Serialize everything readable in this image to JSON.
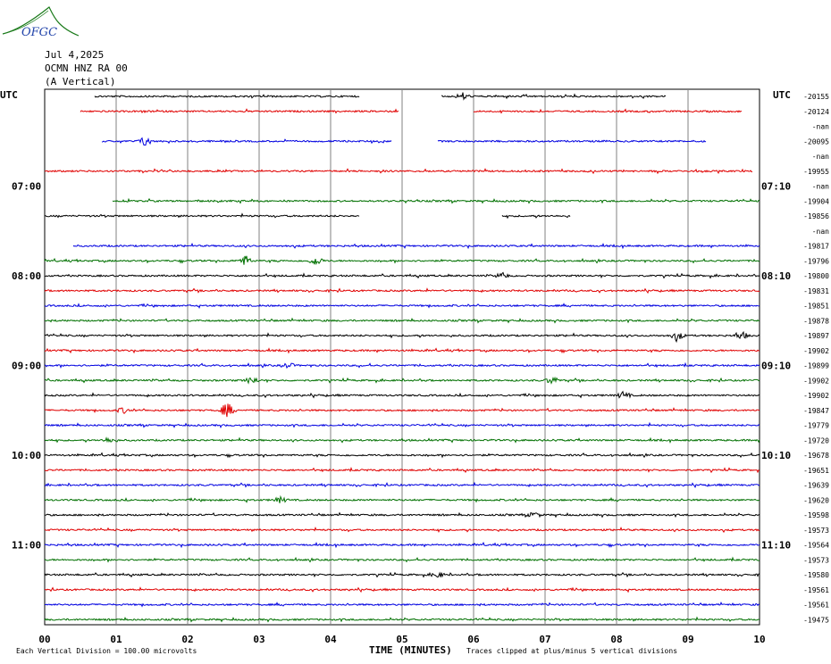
{
  "header": {
    "logo_text": "OFGC",
    "date": "Jul 4,2025",
    "station": "OCMN HNZ RA 00",
    "component": "(A Vertical)"
  },
  "left_label": "UTC",
  "right_label": "UTC",
  "colors": {
    "black": "#000000",
    "red": "#e00000",
    "blue": "#0000e0",
    "green": "#007000",
    "grid": "#808080",
    "logo": "#1a7a1a",
    "logo_text": "#2244aa"
  },
  "footer": {
    "division_note": "Each Vertical Division =  100.00 microvolts",
    "axis_title": "TIME (MINUTES)",
    "clip_note": "Traces clipped at plus/minus 5 vertical divisions"
  },
  "chart_data": {
    "type": "line",
    "title": "",
    "xlabel": "TIME (MINUTES)",
    "ylabel": "",
    "x_ticks": [
      "00",
      "01",
      "02",
      "03",
      "04",
      "05",
      "06",
      "07",
      "08",
      "09",
      "10"
    ],
    "xlim": [
      0,
      10
    ],
    "grid": true,
    "left_time_labels": [
      {
        "row": 6,
        "label": "07:00"
      },
      {
        "row": 12,
        "label": "08:00"
      },
      {
        "row": 18,
        "label": "09:00"
      },
      {
        "row": 24,
        "label": "10:00"
      },
      {
        "row": 30,
        "label": "11:00"
      }
    ],
    "right_time_labels": [
      {
        "row": 6,
        "label": "07:10"
      },
      {
        "row": 12,
        "label": "08:10"
      },
      {
        "row": 18,
        "label": "09:10"
      },
      {
        "row": 24,
        "label": "10:10"
      },
      {
        "row": 30,
        "label": "11:10"
      }
    ],
    "series": [
      {
        "color": "black",
        "offset": "-20155",
        "segments": [
          [
            0.7,
            4.4
          ],
          [
            5.55,
            8.7
          ]
        ],
        "events": [
          {
            "t": 5.85,
            "amp": 4
          }
        ]
      },
      {
        "color": "red",
        "offset": "-20124",
        "segments": [
          [
            0.5,
            4.95
          ],
          [
            6.0,
            9.75
          ]
        ],
        "events": []
      },
      {
        "color": "green",
        "offset": "-nan",
        "segments": [],
        "events": []
      },
      {
        "color": "blue",
        "offset": "-20095",
        "segments": [
          [
            0.8,
            4.85
          ],
          [
            5.5,
            9.25
          ]
        ],
        "events": [
          {
            "t": 1.4,
            "amp": 5
          }
        ]
      },
      {
        "color": "black",
        "offset": "-nan",
        "segments": [],
        "events": []
      },
      {
        "color": "red",
        "offset": "-19955",
        "segments": [
          [
            0.0,
            9.9
          ]
        ],
        "events": []
      },
      {
        "color": "blue",
        "offset": "-nan",
        "segments": [],
        "events": []
      },
      {
        "color": "green",
        "offset": "-19904",
        "segments": [
          [
            0.95,
            10.0
          ]
        ],
        "events": []
      },
      {
        "color": "black",
        "offset": "-19856",
        "segments": [
          [
            0.0,
            4.4
          ],
          [
            6.4,
            7.35
          ]
        ],
        "events": []
      },
      {
        "color": "red",
        "offset": "-nan",
        "segments": [],
        "events": []
      },
      {
        "color": "blue",
        "offset": "-19817",
        "segments": [
          [
            0.4,
            10.0
          ]
        ],
        "events": []
      },
      {
        "color": "green",
        "offset": "-19796",
        "segments": [
          [
            0.0,
            10.0
          ]
        ],
        "events": [
          {
            "t": 2.8,
            "amp": 6
          },
          {
            "t": 3.8,
            "amp": 5
          }
        ]
      },
      {
        "color": "black",
        "offset": "-19800",
        "segments": [
          [
            0.0,
            10.0
          ]
        ],
        "events": [
          {
            "t": 6.4,
            "amp": 3
          }
        ]
      },
      {
        "color": "red",
        "offset": "-19831",
        "segments": [
          [
            0.0,
            10.0
          ]
        ],
        "events": []
      },
      {
        "color": "blue",
        "offset": "-19851",
        "segments": [
          [
            0.0,
            10.0
          ]
        ],
        "events": []
      },
      {
        "color": "green",
        "offset": "-19878",
        "segments": [
          [
            0.0,
            10.0
          ]
        ],
        "events": []
      },
      {
        "color": "black",
        "offset": "-19897",
        "segments": [
          [
            0.0,
            10.0
          ]
        ],
        "events": [
          {
            "t": 8.85,
            "amp": 5
          },
          {
            "t": 9.75,
            "amp": 4
          }
        ]
      },
      {
        "color": "red",
        "offset": "-19902",
        "segments": [
          [
            0.0,
            10.0
          ]
        ],
        "events": []
      },
      {
        "color": "blue",
        "offset": "-19899",
        "segments": [
          [
            0.0,
            10.0
          ]
        ],
        "events": [
          {
            "t": 3.4,
            "amp": 3
          }
        ]
      },
      {
        "color": "green",
        "offset": "-19902",
        "segments": [
          [
            0.0,
            10.0
          ]
        ],
        "events": [
          {
            "t": 2.9,
            "amp": 4
          },
          {
            "t": 7.1,
            "amp": 4
          }
        ]
      },
      {
        "color": "black",
        "offset": "-19902",
        "segments": [
          [
            0.0,
            10.0
          ]
        ],
        "events": [
          {
            "t": 8.1,
            "amp": 4
          }
        ]
      },
      {
        "color": "red",
        "offset": "-19847",
        "segments": [
          [
            0.0,
            10.0
          ]
        ],
        "events": [
          {
            "t": 2.55,
            "amp": 8
          },
          {
            "t": 1.1,
            "amp": 3
          }
        ]
      },
      {
        "color": "blue",
        "offset": "-19779",
        "segments": [
          [
            0.0,
            10.0
          ]
        ],
        "events": []
      },
      {
        "color": "green",
        "offset": "-19720",
        "segments": [
          [
            0.0,
            10.0
          ]
        ],
        "events": [
          {
            "t": 0.9,
            "amp": 3
          }
        ]
      },
      {
        "color": "black",
        "offset": "-19678",
        "segments": [
          [
            0.0,
            10.0
          ]
        ],
        "events": []
      },
      {
        "color": "red",
        "offset": "-19651",
        "segments": [
          [
            0.0,
            10.0
          ]
        ],
        "events": []
      },
      {
        "color": "blue",
        "offset": "-19639",
        "segments": [
          [
            0.0,
            10.0
          ]
        ],
        "events": []
      },
      {
        "color": "green",
        "offset": "-19620",
        "segments": [
          [
            0.0,
            10.0
          ]
        ],
        "events": [
          {
            "t": 3.3,
            "amp": 3
          }
        ]
      },
      {
        "color": "black",
        "offset": "-19598",
        "segments": [
          [
            0.0,
            10.0
          ]
        ],
        "events": [
          {
            "t": 6.85,
            "amp": 3
          }
        ]
      },
      {
        "color": "red",
        "offset": "-19573",
        "segments": [
          [
            0.0,
            10.0
          ]
        ],
        "events": []
      },
      {
        "color": "blue",
        "offset": "-19564",
        "segments": [
          [
            0.0,
            10.0
          ]
        ],
        "events": []
      },
      {
        "color": "green",
        "offset": "-19573",
        "segments": [
          [
            0.0,
            10.0
          ]
        ],
        "events": []
      },
      {
        "color": "black",
        "offset": "-19580",
        "segments": [
          [
            0.0,
            10.0
          ]
        ],
        "events": [
          {
            "t": 5.5,
            "amp": 3
          }
        ]
      },
      {
        "color": "red",
        "offset": "-19561",
        "segments": [
          [
            0.0,
            10.0
          ]
        ],
        "events": []
      },
      {
        "color": "blue",
        "offset": "-19561",
        "segments": [
          [
            0.0,
            10.0
          ]
        ],
        "events": []
      },
      {
        "color": "green",
        "offset": "-19475",
        "segments": [
          [
            0.0,
            10.0
          ]
        ],
        "events": []
      }
    ]
  }
}
